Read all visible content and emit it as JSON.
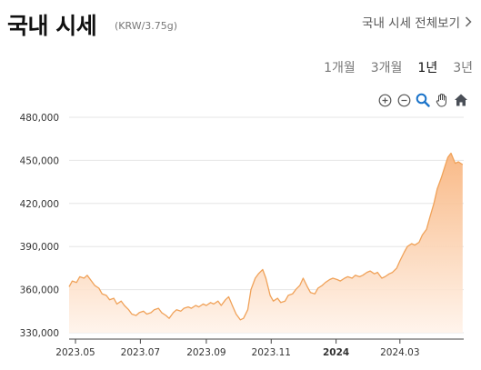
{
  "header": {
    "title": "국내 시세",
    "unit": "(KRW/3.75g)",
    "more_link": "국내 시세 전체보기"
  },
  "periods": [
    {
      "label": "1개월",
      "active": false
    },
    {
      "label": "3개월",
      "active": false
    },
    {
      "label": "1년",
      "active": true
    },
    {
      "label": "3년",
      "active": false
    }
  ],
  "toolbar": [
    "zoom-in-icon",
    "zoom-out-icon",
    "magnifier-icon",
    "pan-hand-icon",
    "home-icon"
  ],
  "colors": {
    "line": "#f0a259",
    "fill_top": "#f8b27a",
    "fill_bottom": "#fff3ea",
    "grid": "#e6e6e6"
  },
  "chart_data": {
    "type": "area",
    "ylim": [
      330000,
      480000
    ],
    "yticks": [
      {
        "value": 480000,
        "label": "480,000"
      },
      {
        "value": 450000,
        "label": "450,000"
      },
      {
        "value": 420000,
        "label": "420,000"
      },
      {
        "value": 390000,
        "label": "390,000"
      },
      {
        "value": 360000,
        "label": "360,000"
      },
      {
        "value": 330000,
        "label": "330,000"
      }
    ],
    "xlim": [
      "2023-04-25",
      "2024-04-30"
    ],
    "xticks": [
      {
        "date": "2023-05-01",
        "label": "2023.05",
        "bold": false
      },
      {
        "date": "2023-07-01",
        "label": "2023.07",
        "bold": false
      },
      {
        "date": "2023-09-01",
        "label": "2023.09",
        "bold": false
      },
      {
        "date": "2023-11-01",
        "label": "2023.11",
        "bold": false
      },
      {
        "date": "2024-01-01",
        "label": "2024",
        "bold": true
      },
      {
        "date": "2024-03-01",
        "label": "2024.03",
        "bold": false
      }
    ],
    "series": [
      {
        "points": [
          [
            "2023-04-25",
            362000
          ],
          [
            "2023-04-28",
            366000
          ],
          [
            "2023-05-02",
            365000
          ],
          [
            "2023-05-05",
            369000
          ],
          [
            "2023-05-09",
            368000
          ],
          [
            "2023-05-12",
            370000
          ],
          [
            "2023-05-16",
            366000
          ],
          [
            "2023-05-19",
            363000
          ],
          [
            "2023-05-23",
            361000
          ],
          [
            "2023-05-26",
            357000
          ],
          [
            "2023-05-30",
            356000
          ],
          [
            "2023-06-02",
            353000
          ],
          [
            "2023-06-06",
            354000
          ],
          [
            "2023-06-09",
            350000
          ],
          [
            "2023-06-13",
            352000
          ],
          [
            "2023-06-16",
            349000
          ],
          [
            "2023-06-20",
            346000
          ],
          [
            "2023-06-23",
            343000
          ],
          [
            "2023-06-27",
            342000
          ],
          [
            "2023-06-30",
            344000
          ],
          [
            "2023-07-04",
            345000
          ],
          [
            "2023-07-07",
            343000
          ],
          [
            "2023-07-11",
            344000
          ],
          [
            "2023-07-14",
            346000
          ],
          [
            "2023-07-18",
            347000
          ],
          [
            "2023-07-21",
            344000
          ],
          [
            "2023-07-25",
            342000
          ],
          [
            "2023-07-28",
            340000
          ],
          [
            "2023-08-01",
            344000
          ],
          [
            "2023-08-04",
            346000
          ],
          [
            "2023-08-08",
            345000
          ],
          [
            "2023-08-11",
            347000
          ],
          [
            "2023-08-15",
            348000
          ],
          [
            "2023-08-18",
            347000
          ],
          [
            "2023-08-22",
            349000
          ],
          [
            "2023-08-25",
            348000
          ],
          [
            "2023-08-29",
            350000
          ],
          [
            "2023-09-01",
            349000
          ],
          [
            "2023-09-05",
            351000
          ],
          [
            "2023-09-08",
            350000
          ],
          [
            "2023-09-12",
            352000
          ],
          [
            "2023-09-15",
            349000
          ],
          [
            "2023-09-19",
            353000
          ],
          [
            "2023-09-22",
            355000
          ],
          [
            "2023-09-26",
            348000
          ],
          [
            "2023-09-29",
            343000
          ],
          [
            "2023-10-03",
            339000
          ],
          [
            "2023-10-06",
            340000
          ],
          [
            "2023-10-10",
            346000
          ],
          [
            "2023-10-13",
            360000
          ],
          [
            "2023-10-17",
            368000
          ],
          [
            "2023-10-20",
            371000
          ],
          [
            "2023-10-24",
            374000
          ],
          [
            "2023-10-27",
            368000
          ],
          [
            "2023-10-31",
            356000
          ],
          [
            "2023-11-03",
            352000
          ],
          [
            "2023-11-07",
            354000
          ],
          [
            "2023-11-10",
            351000
          ],
          [
            "2023-11-14",
            352000
          ],
          [
            "2023-11-17",
            356000
          ],
          [
            "2023-11-21",
            357000
          ],
          [
            "2023-11-24",
            360000
          ],
          [
            "2023-11-28",
            363000
          ],
          [
            "2023-12-01",
            368000
          ],
          [
            "2023-12-05",
            362000
          ],
          [
            "2023-12-08",
            358000
          ],
          [
            "2023-12-12",
            357000
          ],
          [
            "2023-12-15",
            361000
          ],
          [
            "2023-12-19",
            363000
          ],
          [
            "2023-12-22",
            365000
          ],
          [
            "2023-12-26",
            367000
          ],
          [
            "2023-12-29",
            368000
          ],
          [
            "2024-01-02",
            367000
          ],
          [
            "2024-01-05",
            366000
          ],
          [
            "2024-01-09",
            368000
          ],
          [
            "2024-01-12",
            369000
          ],
          [
            "2024-01-16",
            368000
          ],
          [
            "2024-01-19",
            370000
          ],
          [
            "2024-01-23",
            369000
          ],
          [
            "2024-01-26",
            370000
          ],
          [
            "2024-01-30",
            372000
          ],
          [
            "2024-02-02",
            373000
          ],
          [
            "2024-02-06",
            371000
          ],
          [
            "2024-02-09",
            372000
          ],
          [
            "2024-02-13",
            368000
          ],
          [
            "2024-02-16",
            369000
          ],
          [
            "2024-02-20",
            371000
          ],
          [
            "2024-02-23",
            372000
          ],
          [
            "2024-02-27",
            375000
          ],
          [
            "2024-03-01",
            380000
          ],
          [
            "2024-03-05",
            386000
          ],
          [
            "2024-03-08",
            390000
          ],
          [
            "2024-03-12",
            392000
          ],
          [
            "2024-03-15",
            391000
          ],
          [
            "2024-03-19",
            393000
          ],
          [
            "2024-03-22",
            398000
          ],
          [
            "2024-03-26",
            402000
          ],
          [
            "2024-03-29",
            410000
          ],
          [
            "2024-04-02",
            420000
          ],
          [
            "2024-04-05",
            430000
          ],
          [
            "2024-04-09",
            438000
          ],
          [
            "2024-04-12",
            445000
          ],
          [
            "2024-04-15",
            452000
          ],
          [
            "2024-04-18",
            455000
          ],
          [
            "2024-04-22",
            448000
          ],
          [
            "2024-04-25",
            449000
          ],
          [
            "2024-04-29",
            447000
          ]
        ]
      }
    ]
  }
}
